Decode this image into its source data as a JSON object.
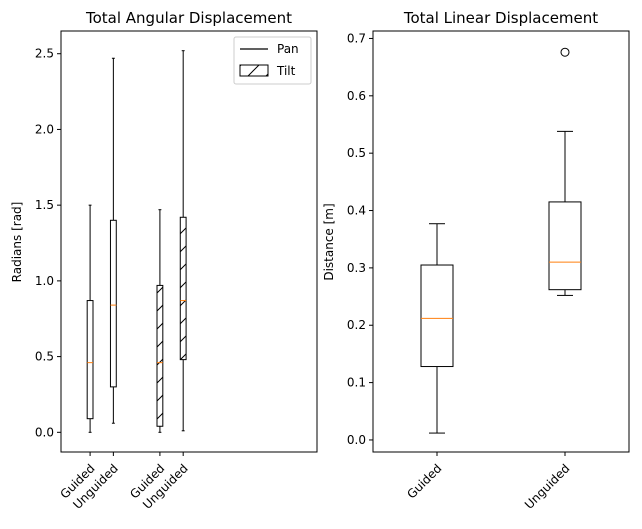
{
  "chart_data": [
    {
      "type": "box",
      "title": "Total Angular Displacement",
      "ylabel": "Radians [rad]",
      "ylim": [
        -0.13,
        2.65
      ],
      "yticks": [
        0.0,
        0.5,
        1.0,
        1.5,
        2.0,
        2.5
      ],
      "ytick_labels": [
        "0.0",
        "0.5",
        "1.0",
        "1.5",
        "2.0",
        "2.5"
      ],
      "categories": [
        "Guided",
        "Unguided",
        "Guided",
        "Unguided"
      ],
      "legend": {
        "placement": "top-right",
        "entries": [
          {
            "label": "Pan",
            "style": "line"
          },
          {
            "label": "Tilt",
            "style": "hatched-box"
          }
        ]
      },
      "boxes": [
        {
          "label": "Guided",
          "group": "Pan",
          "whislo": 0.0,
          "q1": 0.09,
          "median": 0.46,
          "q3": 0.87,
          "whishi": 1.5,
          "hatch": false
        },
        {
          "label": "Unguided",
          "group": "Pan",
          "whislo": 0.06,
          "q1": 0.3,
          "median": 0.84,
          "q3": 1.4,
          "whishi": 2.47,
          "hatch": false
        },
        {
          "label": "Guided",
          "group": "Tilt",
          "whislo": 0.0,
          "q1": 0.04,
          "median": 0.46,
          "q3": 0.97,
          "whishi": 1.47,
          "hatch": true
        },
        {
          "label": "Unguided",
          "group": "Tilt",
          "whislo": 0.01,
          "q1": 0.48,
          "median": 0.87,
          "q3": 1.42,
          "whishi": 2.52,
          "hatch": true
        }
      ]
    },
    {
      "type": "box",
      "title": "Total Linear Displacement",
      "ylabel": "Distance [m]",
      "ylim": [
        -0.021,
        0.713
      ],
      "yticks": [
        0.0,
        0.1,
        0.2,
        0.3,
        0.4,
        0.5,
        0.6,
        0.7
      ],
      "ytick_labels": [
        "0.0",
        "0.1",
        "0.2",
        "0.3",
        "0.4",
        "0.5",
        "0.6",
        "0.7"
      ],
      "categories": [
        "Guided",
        "Unguided"
      ],
      "boxes": [
        {
          "label": "Guided",
          "whislo": 0.012,
          "q1": 0.128,
          "median": 0.212,
          "q3": 0.305,
          "whishi": 0.377,
          "fliers": [],
          "hatch": false
        },
        {
          "label": "Unguided",
          "whislo": 0.252,
          "q1": 0.262,
          "median": 0.31,
          "q3": 0.415,
          "whishi": 0.538,
          "fliers": [
            0.676
          ],
          "hatch": false
        }
      ]
    }
  ],
  "colors": {
    "box_edge": "#000000",
    "median": "#ff7f0e",
    "background": "#ffffff"
  }
}
